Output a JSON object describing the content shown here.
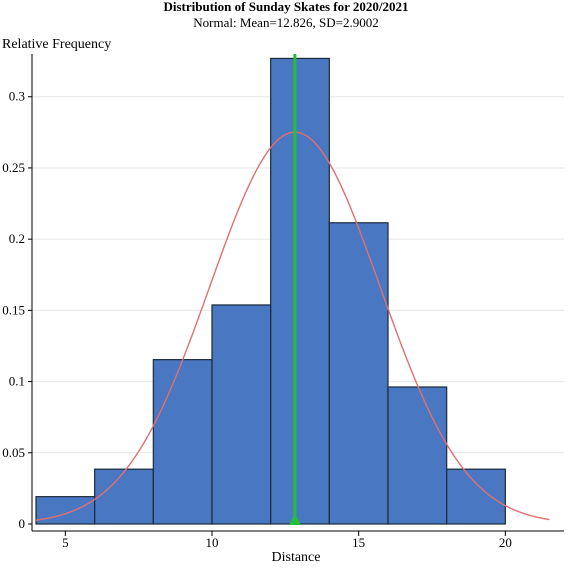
{
  "chart_data": {
    "type": "bar",
    "title": "Distribution of Sunday Skates for 2020/2021",
    "subtitle": "Normal: Mean=12.826, SD=2.9002",
    "xlabel": "Distance",
    "ylabel": "Relative Frequency",
    "xlim": [
      4,
      22
    ],
    "ylim": [
      0,
      0.33
    ],
    "x_ticks": [
      5,
      10,
      15,
      20
    ],
    "y_ticks": [
      0,
      0.05,
      0.1,
      0.15,
      0.2,
      0.25,
      0.3
    ],
    "x_tick_labels": [
      "5",
      "10",
      "15",
      "20"
    ],
    "y_tick_labels": [
      "0",
      "0.05",
      "0.1",
      "0.15",
      "0.2",
      "0.25",
      "0.3"
    ],
    "bins": [
      {
        "from": 4,
        "to": 6,
        "value": 0.0192
      },
      {
        "from": 6,
        "to": 8,
        "value": 0.0385
      },
      {
        "from": 8,
        "to": 10,
        "value": 0.1154
      },
      {
        "from": 10,
        "to": 12,
        "value": 0.1538
      },
      {
        "from": 12,
        "to": 14,
        "value": 0.3269
      },
      {
        "from": 14,
        "to": 16,
        "value": 0.2115
      },
      {
        "from": 16,
        "to": 18,
        "value": 0.0962
      },
      {
        "from": 18,
        "to": 20,
        "value": 0.0385
      }
    ],
    "normal_curve": {
      "mean": 12.826,
      "sd": 2.9002,
      "bin_width": 2,
      "range": [
        4,
        21.5
      ]
    },
    "mean_marker": 12.826,
    "grid": "horizontal",
    "colors": {
      "bar_fill": "#4a77c2",
      "bar_stroke": "#1a2a3a",
      "curve": "#e07070",
      "mean_line": "#22c033",
      "grid": "#e6e6e6",
      "axis": "#000000"
    }
  }
}
